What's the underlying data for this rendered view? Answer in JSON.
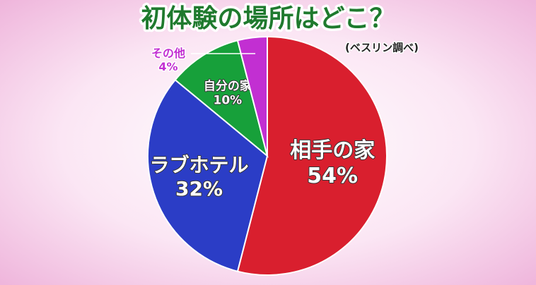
{
  "chart_data": {
    "type": "pie",
    "title": "初体験の場所はどこ？",
    "subtitle": "(ベスリン調べ)",
    "categories": [
      "相手の家",
      "ラブホテル",
      "自分の家",
      "その他"
    ],
    "values": [
      54,
      32,
      10,
      4
    ],
    "value_labels": [
      "54%",
      "32%",
      "10%",
      "4%"
    ],
    "colors": [
      "#d91f2e",
      "#2b3dc6",
      "#17a03a",
      "#c22fd2"
    ]
  }
}
